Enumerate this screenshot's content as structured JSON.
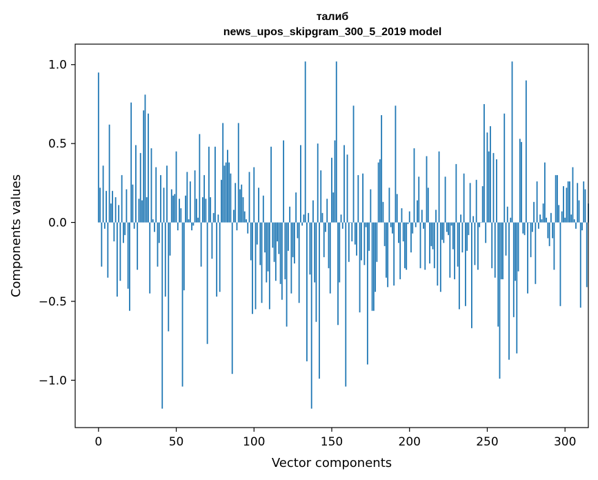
{
  "chart_data": {
    "type": "bar",
    "title": "талиб",
    "subtitle": "news_upos_skipgram_300_5_2019 model",
    "xlabel": "Vector components",
    "ylabel": "Components values",
    "xlim": [
      -15,
      315
    ],
    "ylim": [
      -1.3,
      1.13
    ],
    "xticks": [
      0,
      50,
      100,
      150,
      200,
      250,
      300
    ],
    "xtick_labels": [
      "0",
      "50",
      "100",
      "150",
      "200",
      "250",
      "300"
    ],
    "yticks": [
      -1.0,
      -0.5,
      0.0,
      0.5,
      1.0
    ],
    "ytick_labels": [
      "−1.0",
      "−0.5",
      "0.0",
      "0.5",
      "1.0"
    ],
    "color": "#1f77b4",
    "grid": false,
    "values": [
      0.95,
      0.22,
      -0.28,
      0.36,
      -0.04,
      0.2,
      -0.35,
      0.62,
      0.12,
      0.2,
      -0.12,
      0.16,
      -0.47,
      0.11,
      -0.37,
      0.3,
      -0.13,
      -0.08,
      0.21,
      -0.42,
      -0.56,
      0.76,
      0.24,
      -0.04,
      0.49,
      -0.3,
      0.15,
      0.44,
      0.14,
      0.71,
      0.81,
      0.16,
      0.69,
      -0.45,
      0.47,
      0.02,
      -0.06,
      0.35,
      -0.28,
      -0.13,
      0.3,
      -1.18,
      0.22,
      -0.47,
      0.36,
      -0.69,
      -0.21,
      0.21,
      0.17,
      0.18,
      0.45,
      -0.05,
      0.15,
      0.09,
      -1.04,
      -0.43,
      0.17,
      0.32,
      0.02,
      0.26,
      -0.05,
      -0.02,
      0.33,
      0.15,
      0.03,
      0.56,
      -0.28,
      0.16,
      0.3,
      0.15,
      -0.77,
      0.48,
      0.16,
      -0.23,
      0.06,
      0.48,
      -0.47,
      0.05,
      -0.44,
      0.27,
      0.63,
      0.36,
      0.38,
      0.46,
      0.38,
      0.31,
      -0.96,
      0.08,
      0.25,
      -0.05,
      0.63,
      0.21,
      0.24,
      0.16,
      0.07,
      0.02,
      -0.07,
      0.32,
      -0.24,
      -0.58,
      0.35,
      -0.55,
      -0.14,
      0.22,
      -0.27,
      -0.51,
      0.17,
      -0.19,
      -0.38,
      -0.31,
      -0.55,
      0.48,
      -0.16,
      -0.25,
      -0.37,
      -0.12,
      -0.2,
      -0.39,
      -0.49,
      0.52,
      -0.36,
      -0.66,
      -0.18,
      0.1,
      -0.45,
      -0.22,
      -0.26,
      0.19,
      -0.1,
      -0.51,
      0.49,
      -0.02,
      0.05,
      1.02,
      -0.88,
      0.06,
      -0.33,
      -1.18,
      0.14,
      -0.38,
      -0.63,
      0.5,
      -0.99,
      0.33,
      0.06,
      -0.22,
      -0.06,
      0.15,
      -0.29,
      -0.45,
      0.41,
      0.19,
      0.52,
      1.02,
      -0.65,
      -0.38,
      0.05,
      -0.04,
      0.49,
      -1.04,
      0.43,
      -0.25,
      0.0,
      -0.12,
      0.74,
      -0.14,
      -0.21,
      0.3,
      -0.57,
      -0.24,
      0.31,
      -0.27,
      -0.03,
      -0.9,
      -0.18,
      0.21,
      -0.56,
      -0.56,
      -0.44,
      -0.25,
      0.38,
      0.4,
      0.68,
      0.13,
      -0.15,
      -0.35,
      -0.41,
      0.22,
      -0.03,
      -0.07,
      -0.4,
      0.74,
      0.18,
      -0.13,
      -0.36,
      0.09,
      -0.12,
      -0.29,
      -0.3,
      -0.01,
      0.07,
      -0.19,
      -0.07,
      0.47,
      -0.03,
      0.14,
      0.29,
      -0.29,
      0.08,
      -0.04,
      -0.3,
      0.42,
      0.22,
      -0.26,
      -0.15,
      -0.17,
      -0.29,
      0.08,
      -0.4,
      0.45,
      -0.44,
      -0.11,
      -0.13,
      0.29,
      -0.06,
      -0.08,
      -0.35,
      -0.02,
      -0.17,
      -0.36,
      0.37,
      -0.28,
      -0.55,
      0.05,
      -0.19,
      0.31,
      -0.53,
      -0.18,
      -0.08,
      0.25,
      -0.67,
      0.04,
      -0.27,
      0.27,
      -0.3,
      -0.03,
      0.0,
      0.23,
      0.75,
      -0.13,
      0.57,
      0.45,
      0.61,
      -0.29,
      0.44,
      -0.35,
      0.4,
      -0.66,
      -0.99,
      -0.36,
      -0.36,
      0.69,
      -0.21,
      0.1,
      -0.87,
      0.03,
      1.02,
      -0.6,
      -0.37,
      -0.83,
      -0.31,
      0.53,
      0.51,
      -0.07,
      -0.08,
      0.9,
      -0.45,
      0.0,
      -0.22,
      -0.06,
      0.13,
      -0.39,
      0.26,
      -0.04,
      0.05,
      0.02,
      0.12,
      0.38,
      0.03,
      -0.1,
      -0.15,
      0.06,
      -0.1,
      -0.3,
      0.3,
      0.3,
      0.11,
      -0.53,
      0.07,
      0.23,
      0.03,
      0.22,
      0.26,
      0.26,
      0.05,
      0.35,
      0.02,
      -0.04,
      0.25,
      0.14,
      -0.54,
      -0.05,
      0.26,
      0.21,
      -0.41,
      0.12
    ]
  }
}
